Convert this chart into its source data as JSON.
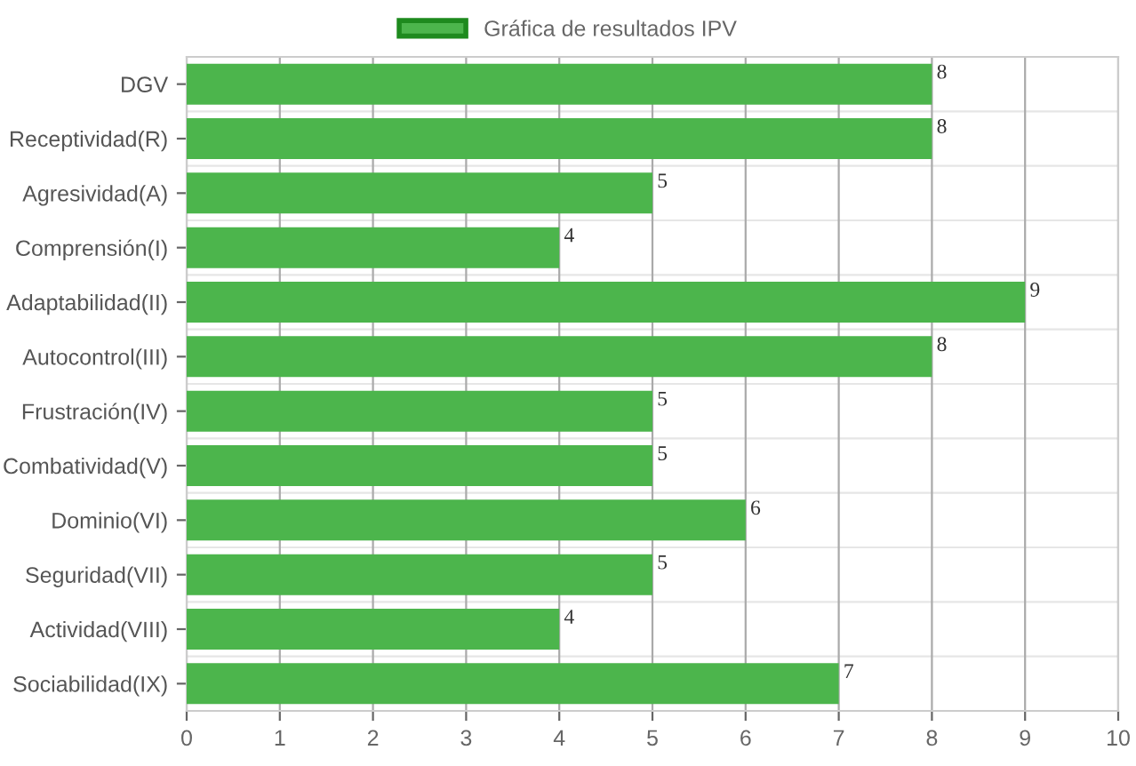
{
  "chart_data": {
    "type": "bar",
    "orientation": "horizontal",
    "categories": [
      "DGV",
      "Receptividad(R)",
      "Agresividad(A)",
      "Comprensión(I)",
      "Adaptabilidad(II)",
      "Autocontrol(III)",
      "Frustración(IV)",
      "Combatividad(V)",
      "Dominio(VI)",
      "Seguridad(VII)",
      "Actividad(VIII)",
      "Sociabilidad(IX)"
    ],
    "series": [
      {
        "name": "Gráfica de resultados IPV",
        "color": "#4cb54c",
        "values": [
          8,
          8,
          5,
          4,
          9,
          8,
          5,
          5,
          6,
          5,
          4,
          7
        ]
      }
    ],
    "xlim": [
      0,
      10
    ],
    "xticks": [
      0,
      1,
      2,
      3,
      4,
      5,
      6,
      7,
      8,
      9,
      10
    ],
    "grid": true,
    "legend": "top",
    "data_labels": true
  }
}
